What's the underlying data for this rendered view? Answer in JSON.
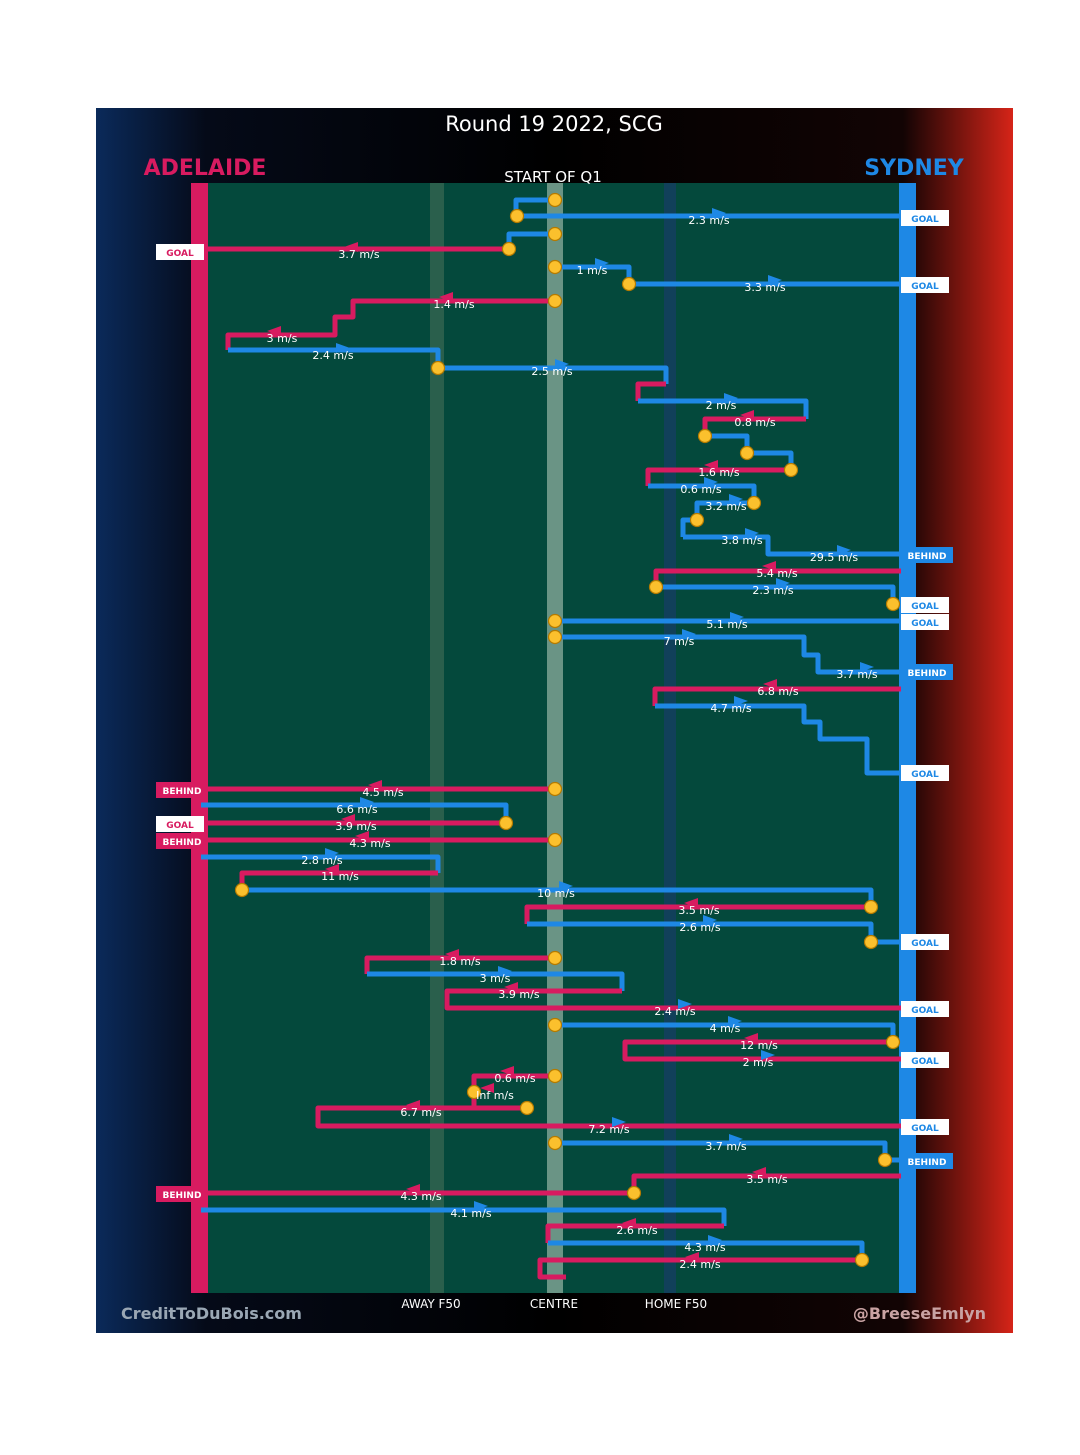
{
  "header": {
    "title": "Round 19 2022, SCG",
    "team_left": "ADELAIDE",
    "team_right": "SYDNEY",
    "period": "START OF Q1"
  },
  "footer": {
    "credit_left": "CreditToDuBois.com",
    "credit_right": "@BreeseEmlyn"
  },
  "colors": {
    "adelaide": "#d81b60",
    "sydney": "#1e88e5",
    "field": "#04493c",
    "ball_node": "#fbc02d",
    "gradient_left": "#0a2a5a",
    "gradient_right": "#d62418"
  },
  "chart_data": {
    "type": "line",
    "x_axis_labels": [
      "AWAY F50",
      "CENTRE",
      "HOME F50"
    ],
    "left_team": "ADELAIDE",
    "right_team": "SYDNEY",
    "speed_labels": [
      {
        "team": "SYDNEY",
        "label": "2.3 m/s"
      },
      {
        "team": "ADELAIDE",
        "label": "3.7 m/s"
      },
      {
        "team": "SYDNEY",
        "label": "1 m/s"
      },
      {
        "team": "SYDNEY",
        "label": "3.3 m/s"
      },
      {
        "team": "ADELAIDE",
        "label": "1.4 m/s"
      },
      {
        "team": "ADELAIDE",
        "label": "3 m/s"
      },
      {
        "team": "SYDNEY",
        "label": "2.4 m/s"
      },
      {
        "team": "SYDNEY",
        "label": "2.5 m/s"
      },
      {
        "team": "SYDNEY",
        "label": "2 m/s"
      },
      {
        "team": "ADELAIDE",
        "label": "0.8 m/s"
      },
      {
        "team": "ADELAIDE",
        "label": "1.6 m/s"
      },
      {
        "team": "SYDNEY",
        "label": "0.6 m/s"
      },
      {
        "team": "SYDNEY",
        "label": "3.2 m/s"
      },
      {
        "team": "SYDNEY",
        "label": "3.8 m/s"
      },
      {
        "team": "SYDNEY",
        "label": "29.5 m/s"
      },
      {
        "team": "ADELAIDE",
        "label": "5.4 m/s"
      },
      {
        "team": "SYDNEY",
        "label": "2.3 m/s"
      },
      {
        "team": "SYDNEY",
        "label": "5.1 m/s"
      },
      {
        "team": "SYDNEY",
        "label": "7 m/s"
      },
      {
        "team": "SYDNEY",
        "label": "3.7 m/s"
      },
      {
        "team": "ADELAIDE",
        "label": "6.8 m/s"
      },
      {
        "team": "SYDNEY",
        "label": "4.7 m/s"
      },
      {
        "team": "ADELAIDE",
        "label": "4.5 m/s"
      },
      {
        "team": "SYDNEY",
        "label": "6.6 m/s"
      },
      {
        "team": "ADELAIDE",
        "label": "3.9 m/s"
      },
      {
        "team": "ADELAIDE",
        "label": "4.3 m/s"
      },
      {
        "team": "SYDNEY",
        "label": "2.8 m/s"
      },
      {
        "team": "ADELAIDE",
        "label": "11 m/s"
      },
      {
        "team": "SYDNEY",
        "label": "10 m/s"
      },
      {
        "team": "ADELAIDE",
        "label": "3.5 m/s"
      },
      {
        "team": "SYDNEY",
        "label": "2.6 m/s"
      },
      {
        "team": "ADELAIDE",
        "label": "1.8 m/s"
      },
      {
        "team": "SYDNEY",
        "label": "3 m/s"
      },
      {
        "team": "ADELAIDE",
        "label": "3.9 m/s"
      },
      {
        "team": "SYDNEY",
        "label": "2.4 m/s"
      },
      {
        "team": "SYDNEY",
        "label": "4 m/s"
      },
      {
        "team": "ADELAIDE",
        "label": "12 m/s"
      },
      {
        "team": "SYDNEY",
        "label": "2 m/s"
      },
      {
        "team": "ADELAIDE",
        "label": "0.6 m/s"
      },
      {
        "team": "ADELAIDE",
        "label": "Inf m/s"
      },
      {
        "team": "ADELAIDE",
        "label": "6.7 m/s"
      },
      {
        "team": "SYDNEY",
        "label": "7.2 m/s"
      },
      {
        "team": "SYDNEY",
        "label": "3.7 m/s"
      },
      {
        "team": "ADELAIDE",
        "label": "3.5 m/s"
      },
      {
        "team": "ADELAIDE",
        "label": "4.3 m/s"
      },
      {
        "team": "SYDNEY",
        "label": "4.1 m/s"
      },
      {
        "team": "ADELAIDE",
        "label": "2.6 m/s"
      },
      {
        "team": "SYDNEY",
        "label": "4.3 m/s"
      },
      {
        "team": "ADELAIDE",
        "label": "2.4 m/s"
      }
    ],
    "scores": [
      {
        "team": "SYDNEY",
        "result": "GOAL"
      },
      {
        "team": "ADELAIDE",
        "result": "GOAL"
      },
      {
        "team": "SYDNEY",
        "result": "GOAL"
      },
      {
        "team": "SYDNEY",
        "result": "BEHIND"
      },
      {
        "team": "SYDNEY",
        "result": "GOAL"
      },
      {
        "team": "SYDNEY",
        "result": "GOAL"
      },
      {
        "team": "SYDNEY",
        "result": "BEHIND"
      },
      {
        "team": "SYDNEY",
        "result": "GOAL"
      },
      {
        "team": "ADELAIDE",
        "result": "BEHIND"
      },
      {
        "team": "ADELAIDE",
        "result": "GOAL"
      },
      {
        "team": "ADELAIDE",
        "result": "BEHIND"
      },
      {
        "team": "SYDNEY",
        "result": "GOAL"
      },
      {
        "team": "SYDNEY",
        "result": "GOAL"
      },
      {
        "team": "SYDNEY",
        "result": "GOAL"
      },
      {
        "team": "SYDNEY",
        "result": "GOAL"
      },
      {
        "team": "SYDNEY",
        "result": "BEHIND"
      },
      {
        "team": "ADELAIDE",
        "result": "BEHIND"
      }
    ]
  }
}
